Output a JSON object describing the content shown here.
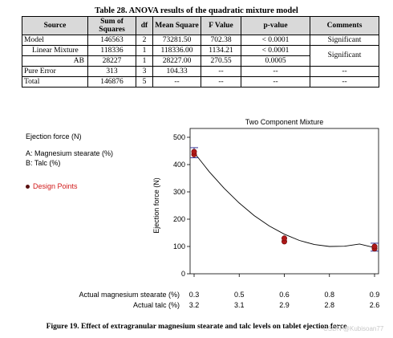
{
  "table": {
    "title": "Table 28. ANOVA results of the quadratic mixture model",
    "headers": [
      "Source",
      "Sum of Squares",
      "df",
      "Mean Square",
      "F Value",
      "p-value",
      "Comments"
    ],
    "rows": [
      {
        "source": "Model",
        "ss": "146563",
        "df": "2",
        "ms": "73281.50",
        "f": "702.38",
        "p": "< 0.0001",
        "comment": "Significant"
      },
      {
        "source": "Linear Mixture",
        "ss": "118336",
        "df": "1",
        "ms": "118336.00",
        "f": "1134.21",
        "p": "< 0.0001",
        "comment": "Significant"
      },
      {
        "source": "AB",
        "ss": "28227",
        "df": "1",
        "ms": "28227.00",
        "f": "270.55",
        "p": "0.0005",
        "comment": ""
      },
      {
        "source": "Pure Error",
        "ss": "313",
        "df": "3",
        "ms": "104.33",
        "f": "--",
        "p": "--",
        "comment": "--"
      },
      {
        "source": "Total",
        "ss": "146876",
        "df": "5",
        "ms": "--",
        "f": "--",
        "p": "--",
        "comment": "--"
      }
    ]
  },
  "legend": {
    "response": "Ejection force (N)",
    "factor_a": "A: Magnesium stearate (%)",
    "factor_b": "B: Talc (%)",
    "design_points": "Design Points"
  },
  "chart_data": {
    "type": "line",
    "title": "Two Component Mixture",
    "ylabel": "Ejection force (N)",
    "ylim": [
      0,
      500
    ],
    "yticks": [
      0,
      100,
      200,
      300,
      400,
      500
    ],
    "xlim": [
      0.3,
      0.9
    ],
    "x_row_a_label": "Actual magnesium stearate (%)",
    "x_row_b_label": "Actual talc (%)",
    "x_ticks": [
      0.3,
      0.45,
      0.6,
      0.75,
      0.9
    ],
    "x_ticks_a": [
      "0.3",
      "0.5",
      "0.6",
      "0.8",
      "0.9"
    ],
    "x_ticks_b": [
      "3.2",
      "3.1",
      "2.9",
      "2.8",
      "2.6"
    ],
    "fitted_curve": {
      "x": [
        0.3,
        0.35,
        0.4,
        0.45,
        0.5,
        0.55,
        0.6,
        0.65,
        0.7,
        0.75,
        0.8,
        0.85,
        0.9
      ],
      "y": [
        444,
        374,
        313,
        259,
        213,
        175,
        145,
        122,
        107,
        100,
        101,
        109,
        96
      ]
    },
    "design_points": {
      "x": [
        0.3,
        0.3,
        0.6,
        0.6,
        0.9,
        0.9
      ],
      "y": [
        437,
        447,
        118,
        130,
        92,
        100
      ]
    },
    "error_bars": [
      {
        "x": 0.3,
        "low": 425,
        "high": 462
      },
      {
        "x": 0.9,
        "low": 83,
        "high": 112
      }
    ],
    "colors": {
      "points": "#b01818",
      "error_bar": "#3a3a99",
      "curve": "#000000"
    }
  },
  "caption": "Figure 19. Effect of extragranular magnesium stearate and talc levels on tablet ejection force",
  "watermark": "CSDN @Kubisoan77"
}
